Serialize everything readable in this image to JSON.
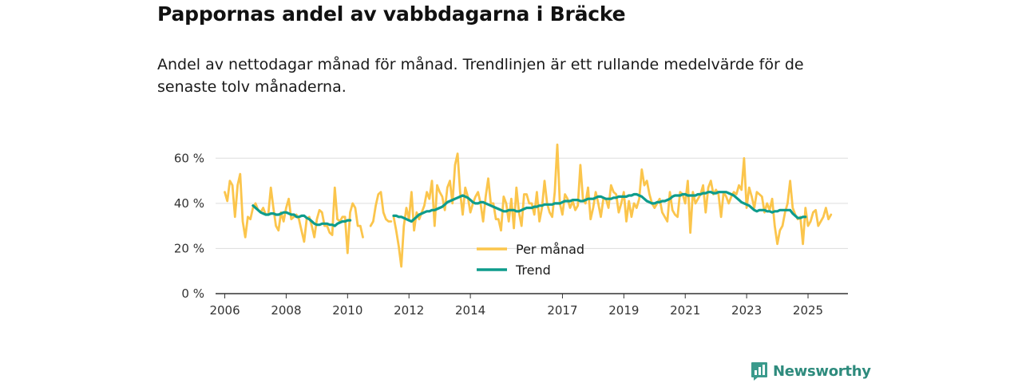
{
  "title": "Pappornas andel av vabbdagarna i Bräcke",
  "subtitle": "Andel av nettodagar månad för månad. Trendlinjen är ett rullande medelvärde för de senaste tolv månaderna.",
  "brand": "Newsworthy",
  "colors": {
    "monthly": "#fbc54c",
    "trend": "#0e9c8c",
    "grid": "#dddddd",
    "axis": "#333333",
    "brand": "#2e8b7d"
  },
  "chart_data": {
    "type": "line",
    "ylabel": "",
    "xlabel": "",
    "ylim": [
      0,
      70
    ],
    "xlim": [
      2005.7,
      2026.3
    ],
    "y_ticks": [
      {
        "value": 0,
        "label": "0 %"
      },
      {
        "value": 20,
        "label": "20 %"
      },
      {
        "value": 40,
        "label": "40 %"
      },
      {
        "value": 60,
        "label": "60 %"
      }
    ],
    "x_ticks": [
      {
        "value": 2006,
        "label": "2006"
      },
      {
        "value": 2008,
        "label": "2008"
      },
      {
        "value": 2010,
        "label": "2010"
      },
      {
        "value": 2012,
        "label": "2012"
      },
      {
        "value": 2014,
        "label": "2014"
      },
      {
        "value": 2017,
        "label": "2017"
      },
      {
        "value": 2019,
        "label": "2019"
      },
      {
        "value": 2021,
        "label": "2021"
      },
      {
        "value": 2023,
        "label": "2023"
      },
      {
        "value": 2025,
        "label": "2025"
      }
    ],
    "legend": [
      "Per månad",
      "Trend"
    ],
    "series": [
      {
        "name": "Per månad",
        "segments": [
          {
            "start": 2006.0,
            "step": 0.08333,
            "values": [
              45,
              41,
              50,
              48,
              34,
              48,
              53,
              32,
              25,
              34,
              33,
              38,
              40,
              37,
              36,
              38,
              35,
              35,
              47,
              38,
              30,
              28,
              36,
              32,
              38,
              42,
              33,
              34,
              35,
              33,
              28,
              23,
              33,
              34,
              30,
              25,
              33,
              37,
              36,
              30,
              30,
              27,
              26,
              47,
              33,
              32,
              34,
              34,
              18,
              36,
              40,
              38,
              30,
              30,
              25
            ]
          },
          {
            "start": 2010.75,
            "step": 0.08333,
            "values": [
              30,
              32,
              39,
              44,
              45,
              36,
              33,
              32,
              32
            ]
          },
          {
            "start": 2011.5,
            "step": 0.08333,
            "values": [
              34,
              28,
              21,
              12,
              30,
              38,
              33,
              45,
              28,
              36,
              33,
              36,
              39,
              45,
              42,
              50,
              30,
              48,
              45,
              43,
              37,
              47,
              50,
              40,
              57,
              62,
              45,
              35,
              47,
              43,
              36,
              40,
              43,
              45,
              40,
              32,
              43,
              51,
              40,
              40,
              33,
              33,
              28,
              43,
              40,
              32,
              42,
              29,
              47,
              36,
              30,
              44,
              44,
              40,
              40,
              35,
              45,
              32,
              38,
              50,
              40,
              36,
              34,
              45,
              66,
              40,
              35,
              44,
              42,
              38,
              41,
              37,
              39,
              57,
              42,
              40,
              47,
              33,
              38,
              45,
              40,
              34,
              42,
              42,
              38,
              48,
              45,
              44,
              36,
              40,
              45,
              32,
              41,
              34,
              40,
              38,
              42,
              55,
              48,
              50,
              44,
              40,
              38,
              40,
              42,
              36,
              34,
              32,
              45,
              37,
              35,
              34,
              45,
              44,
              40,
              50,
              27,
              45,
              40,
              42,
              44,
              48,
              36,
              47,
              50,
              44,
              46,
              44,
              34,
              45,
              43,
              40,
              43,
              45,
              44,
              48,
              46,
              60,
              38,
              47,
              43,
              38,
              45,
              44,
              43,
              36,
              40,
              37,
              42,
              30,
              22,
              28,
              30,
              36,
              40,
              50,
              38,
              35,
              33,
              34,
              22,
              38,
              30,
              32,
              36,
              37,
              30,
              32,
              34,
              38,
              33,
              35
            ]
          }
        ]
      },
      {
        "name": "Trend",
        "segments": [
          {
            "start": 2006.92,
            "step": 0.08333,
            "values": [
              39,
              38,
              37,
              36,
              35.5,
              35,
              35,
              35.5,
              35.5,
              35,
              35,
              35.5,
              36,
              36,
              35.5,
              35,
              35,
              34,
              34,
              34.5,
              34.5,
              33.5,
              33,
              32,
              31,
              30.5,
              30.5,
              31,
              31,
              31,
              30.5,
              30.5,
              30,
              31,
              31.5,
              32,
              32,
              32.5,
              32.5
            ]
          },
          {
            "start": 2011.5,
            "step": 0.08333,
            "values": [
              34.5,
              34.5,
              34,
              34,
              33.5,
              33,
              32.5,
              32,
              33,
              34,
              35,
              35.5,
              36,
              36.5,
              36.5,
              37,
              37,
              37.5,
              38,
              38.5,
              39.5,
              40.5,
              41,
              41.5,
              42,
              42.5,
              43,
              43.5,
              43,
              42.5,
              41.5,
              40.5,
              40,
              40,
              40.5,
              40.5,
              40,
              39.5,
              39,
              38.5,
              38,
              37.5,
              37,
              36.5,
              36.5,
              37,
              37,
              37,
              36.5,
              36.5,
              37,
              37.5,
              38,
              38,
              38,
              38.5,
              38.5,
              39,
              39,
              39.5,
              39.5,
              39.5,
              39.5,
              40,
              40,
              40,
              40.5,
              41,
              41,
              41,
              41.5,
              41.5,
              41.5,
              41,
              41,
              41.5,
              42,
              42,
              42,
              42.5,
              43,
              43,
              42.5,
              42,
              42,
              42,
              42.5,
              42.5,
              43,
              43,
              43,
              43,
              43.5,
              43.5,
              44,
              44,
              43.5,
              43,
              42,
              41,
              40.5,
              40,
              40,
              40.5,
              40.5,
              41,
              41,
              41.5,
              42,
              43,
              43.5,
              43.5,
              43.5,
              44,
              44,
              43.5,
              43.5,
              43.5,
              43.5,
              44,
              44,
              44.5,
              44.5,
              45,
              45,
              44.5,
              44.5,
              45,
              45,
              45,
              45,
              44.5,
              44,
              43.5,
              42.5,
              41.5,
              40.5,
              40,
              39.5,
              39,
              38,
              37,
              36.5,
              37,
              37,
              37,
              36.5,
              36.5,
              36,
              36.5,
              36.5,
              37,
              37,
              37,
              37,
              37,
              35.5,
              34.5,
              33.5,
              33.5,
              34,
              34
            ]
          }
        ]
      }
    ]
  }
}
